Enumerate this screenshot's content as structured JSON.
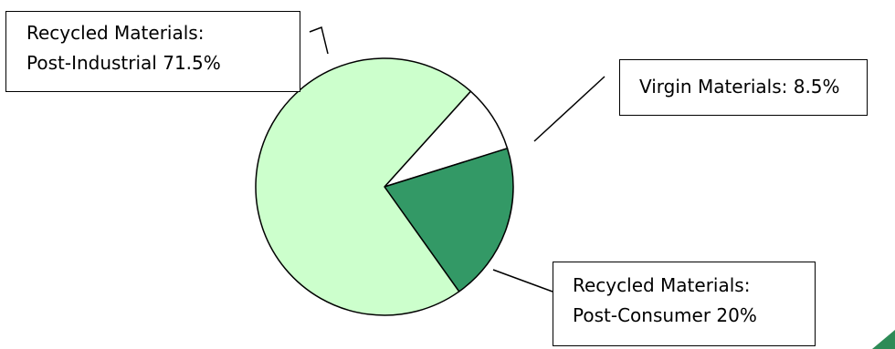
{
  "chart_data": {
    "type": "pie",
    "title": "",
    "slices": [
      {
        "key": "post_industrial",
        "label_line1": "Recycled Materials:",
        "label_line2": "Post-Industrial 71.5%",
        "value": 71.5,
        "color": "#ccffcc"
      },
      {
        "key": "virgin",
        "label_line1": "Virgin Materials: 8.5%",
        "label_line2": "",
        "value": 8.5,
        "color": "#ffffff"
      },
      {
        "key": "post_consumer",
        "label_line1": "Recycled Materials:",
        "label_line2": "Post-Consumer 20%",
        "value": 20,
        "color": "#339966"
      }
    ],
    "legend": "none",
    "label_style": "callout boxes with leader lines"
  },
  "colors": {
    "outline": "#000000",
    "corner_accent": "#2e8b57"
  }
}
